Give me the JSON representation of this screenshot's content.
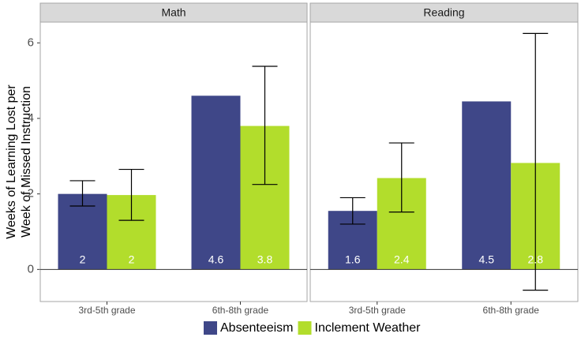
{
  "chart_data": {
    "type": "bar",
    "ylabel_lines": [
      "Weeks of Learning Lost per",
      "Week of Missed Instruction"
    ],
    "xlabel": "",
    "ylim": [
      -0.85,
      6.55
    ],
    "yticks": [
      0,
      2,
      4,
      6
    ],
    "categories": [
      "3rd-5th grade",
      "6th-8th grade"
    ],
    "legend_position": "bottom",
    "grid": false,
    "colors": {
      "Absenteeism": "#3f4788",
      "Inclement Weather": "#b2dd2c"
    },
    "legend": [
      "Absenteeism",
      "Inclement Weather"
    ],
    "panels": [
      {
        "title": "Math",
        "bars": [
          {
            "category": "3rd-5th grade",
            "series": "Absenteeism",
            "value": 2.0,
            "label": "2",
            "err_low": 1.68,
            "err_high": 2.35
          },
          {
            "category": "3rd-5th grade",
            "series": "Inclement Weather",
            "value": 1.97,
            "label": "2",
            "err_low": 1.3,
            "err_high": 2.65
          },
          {
            "category": "6th-8th grade",
            "series": "Absenteeism",
            "value": 4.6,
            "label": "4.6"
          },
          {
            "category": "6th-8th grade",
            "series": "Inclement Weather",
            "value": 3.8,
            "label": "3.8",
            "err_low": 2.25,
            "err_high": 5.38
          }
        ]
      },
      {
        "title": "Reading",
        "bars": [
          {
            "category": "3rd-5th grade",
            "series": "Absenteeism",
            "value": 1.55,
            "label": "1.6",
            "err_low": 1.2,
            "err_high": 1.9
          },
          {
            "category": "3rd-5th grade",
            "series": "Inclement Weather",
            "value": 2.42,
            "label": "2.4",
            "err_low": 1.52,
            "err_high": 3.35
          },
          {
            "category": "6th-8th grade",
            "series": "Absenteeism",
            "value": 4.45,
            "label": "4.5"
          },
          {
            "category": "6th-8th grade",
            "series": "Inclement Weather",
            "value": 2.82,
            "label": "2.8",
            "err_low": -0.55,
            "err_high": 6.25
          }
        ]
      }
    ]
  }
}
